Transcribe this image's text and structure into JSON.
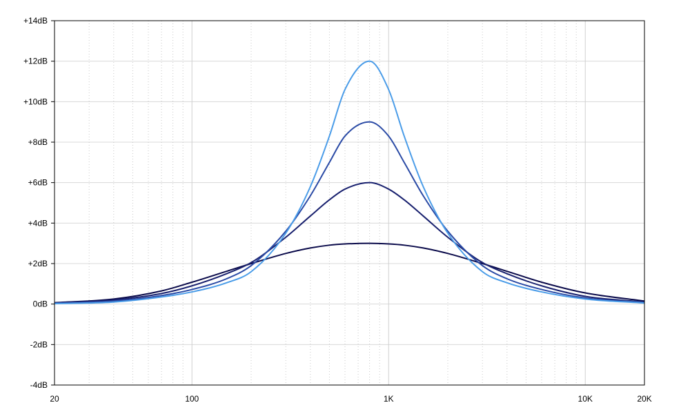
{
  "chart_data": {
    "type": "line",
    "title": "",
    "xlabel": "",
    "ylabel": "",
    "x_scale": "log",
    "xlim": [
      20,
      20000
    ],
    "ylim": [
      -4,
      14
    ],
    "grid": true,
    "x_ticks": [
      {
        "value": 20,
        "label": "20"
      },
      {
        "value": 100,
        "label": "100"
      },
      {
        "value": 1000,
        "label": "1K"
      },
      {
        "value": 10000,
        "label": "10K"
      },
      {
        "value": 20000,
        "label": "20K"
      }
    ],
    "y_ticks": [
      {
        "value": -4,
        "label": "-4dB"
      },
      {
        "value": -2,
        "label": "-2dB"
      },
      {
        "value": 0,
        "label": "0dB"
      },
      {
        "value": 2,
        "label": "+2dB"
      },
      {
        "value": 4,
        "label": "+4dB"
      },
      {
        "value": 6,
        "label": "+6dB"
      },
      {
        "value": 8,
        "label": "+8dB"
      },
      {
        "value": 10,
        "label": "+10dB"
      },
      {
        "value": 12,
        "label": "+12dB"
      },
      {
        "value": 14,
        "label": "+14dB"
      }
    ],
    "x": [
      20,
      40,
      70,
      100,
      150,
      200,
      300,
      400,
      500,
      600,
      800,
      1000,
      1200,
      1500,
      2000,
      3000,
      4000,
      6000,
      10000,
      20000
    ],
    "series": [
      {
        "color": "#0a0a4a",
        "values": [
          0.07,
          0.25,
          0.65,
          1.08,
          1.62,
          2.0,
          2.5,
          2.77,
          2.91,
          2.97,
          3.0,
          2.97,
          2.91,
          2.77,
          2.5,
          2.0,
          1.62,
          1.08,
          0.55,
          0.15
        ]
      },
      {
        "color": "#18206e",
        "values": [
          0.05,
          0.2,
          0.52,
          0.9,
          1.5,
          2.05,
          3.3,
          4.35,
          5.15,
          5.68,
          6.0,
          5.68,
          5.15,
          4.35,
          3.3,
          2.05,
          1.5,
          0.9,
          0.38,
          0.1
        ]
      },
      {
        "color": "#2a4aa5",
        "values": [
          0.05,
          0.15,
          0.42,
          0.72,
          1.25,
          1.9,
          3.6,
          5.35,
          7.0,
          8.3,
          9.0,
          8.3,
          7.0,
          5.35,
          3.6,
          1.9,
          1.25,
          0.72,
          0.3,
          0.08
        ]
      },
      {
        "color": "#4a9ce8",
        "values": [
          0.02,
          0.1,
          0.35,
          0.6,
          1.05,
          1.6,
          3.5,
          5.8,
          8.3,
          10.6,
          12.0,
          10.6,
          8.3,
          5.8,
          3.5,
          1.6,
          1.05,
          0.6,
          0.25,
          0.05
        ]
      }
    ]
  }
}
